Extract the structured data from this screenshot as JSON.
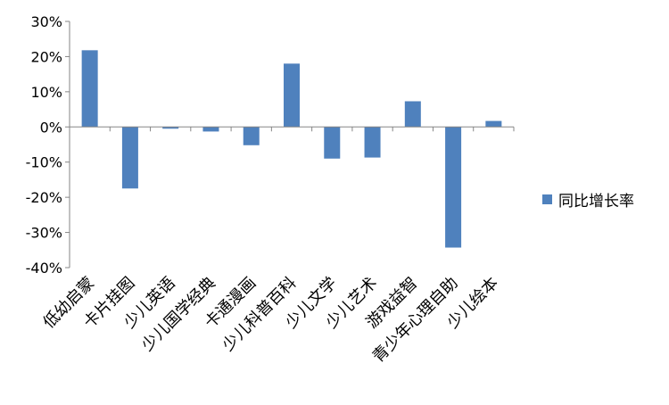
{
  "chart_data": {
    "type": "bar",
    "categories": [
      "低幼启蒙",
      "卡片挂图",
      "少儿英语",
      "少儿国学经典",
      "卡通漫画",
      "少儿科普百科",
      "少儿文学",
      "少儿艺术",
      "游戏益智",
      "青少年心理自助",
      "少儿绘本"
    ],
    "series": [
      {
        "name": "同比增长率",
        "values": [
          21.8,
          -17.5,
          -0.5,
          -1.3,
          -5.2,
          18.0,
          -9.0,
          -8.7,
          7.3,
          -34.3,
          1.7
        ],
        "color": "#4f81bd"
      }
    ],
    "yticks": [
      "30%",
      "20%",
      "10%",
      "0%",
      "-10%",
      "-20%",
      "-30%",
      "-40%"
    ],
    "ylim": [
      -40,
      30
    ],
    "title": "",
    "xlabel": "",
    "ylabel": "",
    "grid": false,
    "legend_position": "right"
  }
}
